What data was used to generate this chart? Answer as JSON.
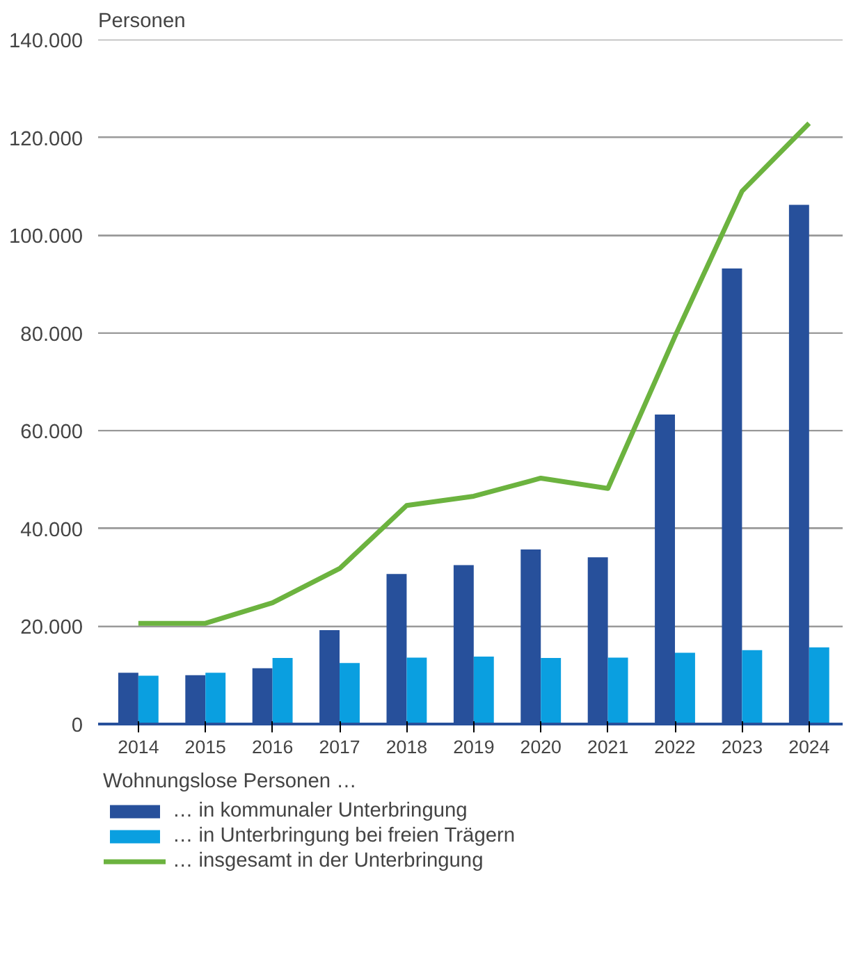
{
  "chart_data": {
    "type": "bar",
    "ylabel": "Personen",
    "legend_title": "Wohnungslose Personen …",
    "categories": [
      "2014",
      "2015",
      "2016",
      "2017",
      "2018",
      "2019",
      "2020",
      "2021",
      "2022",
      "2023",
      "2024"
    ],
    "series": [
      {
        "name": "… in kommunaler Unterbringung",
        "color": "#27509b",
        "values": [
          10500,
          10000,
          11400,
          19200,
          30700,
          32500,
          35700,
          34100,
          63300,
          93200,
          106200
        ]
      },
      {
        "name": "… in Unterbringung bei freien Trägern",
        "color": "#0a9fe0",
        "values": [
          9900,
          10500,
          13500,
          12500,
          13600,
          13800,
          13500,
          13600,
          14600,
          15100,
          15700
        ]
      },
      {
        "name": "… insgesamt in der Unterbringung",
        "color": "#6cb33f",
        "type": "line",
        "values": [
          20600,
          20600,
          24800,
          31800,
          44700,
          46600,
          50300,
          48200,
          79300,
          109000,
          122900
        ]
      }
    ],
    "ylim": [
      0,
      140000
    ],
    "yticks": [
      {
        "value": 0,
        "label": "0"
      },
      {
        "value": 20000,
        "label": "20.000"
      },
      {
        "value": 40000,
        "label": "40.000"
      },
      {
        "value": 60000,
        "label": "60.000"
      },
      {
        "value": 80000,
        "label": "80.000"
      },
      {
        "value": 100000,
        "label": "100.000"
      },
      {
        "value": 120000,
        "label": "120.000"
      },
      {
        "value": 140000,
        "label": "140.000"
      }
    ],
    "grid": "y",
    "legend": "bottom",
    "marker": "none",
    "line_style": "solid"
  }
}
